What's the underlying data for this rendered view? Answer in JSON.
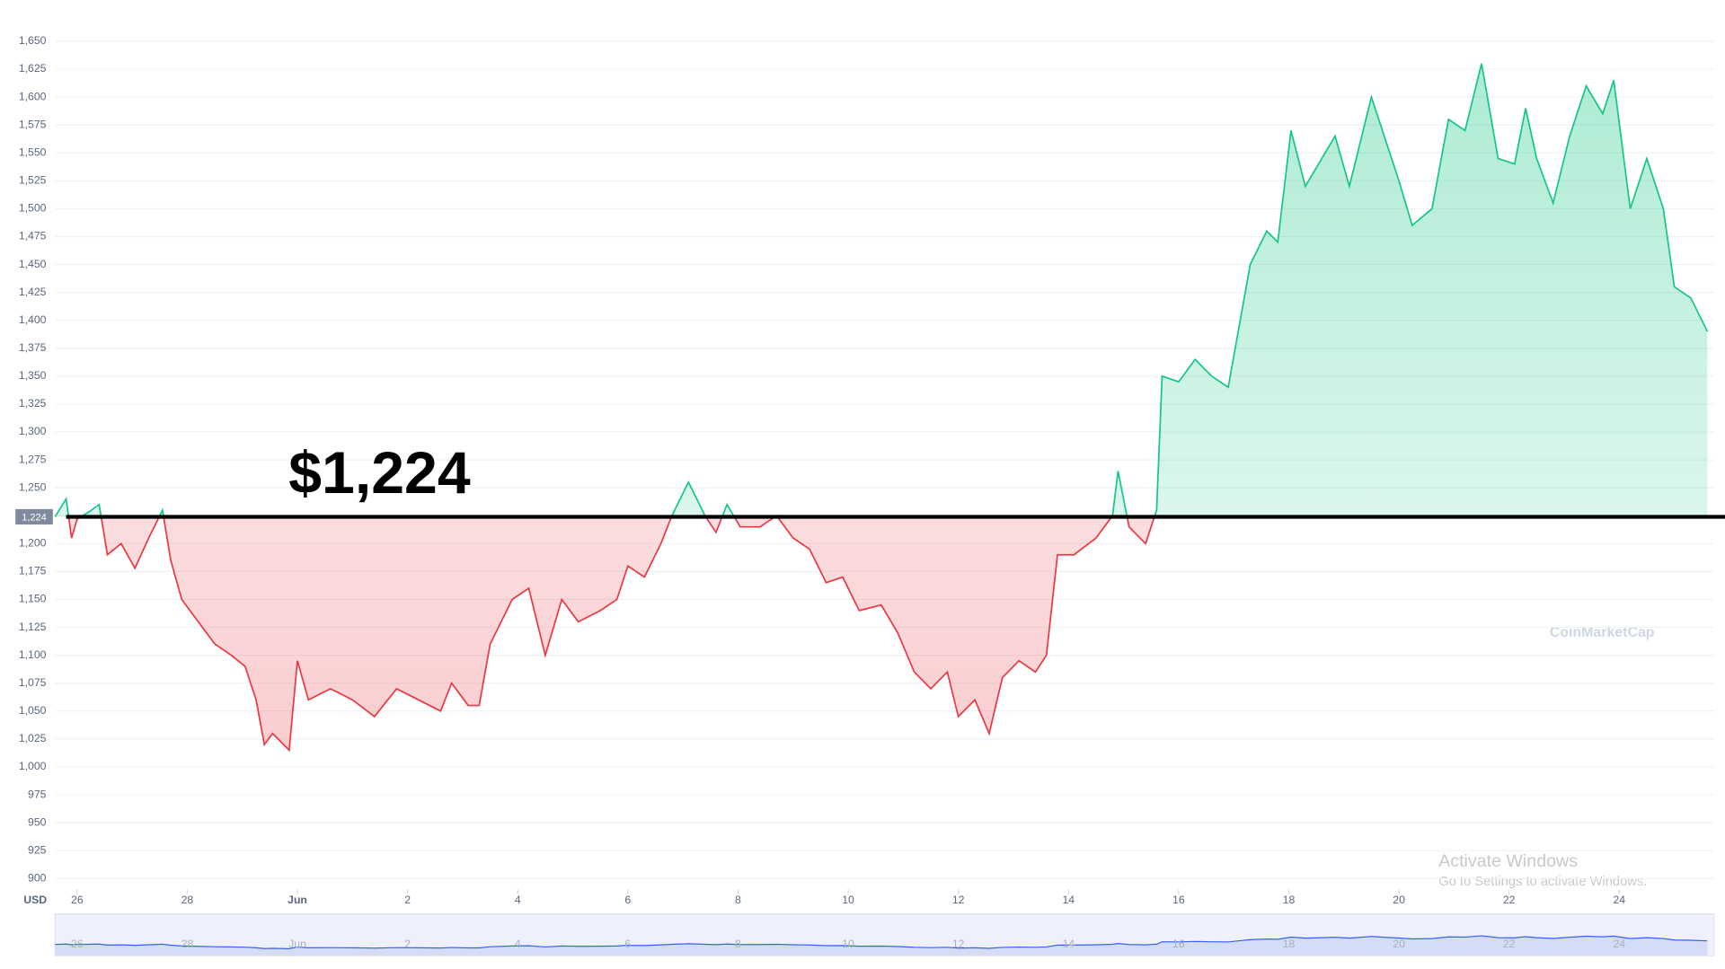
{
  "chart_data": {
    "type": "line",
    "currency": "USD",
    "annotation": "$1,224",
    "baseline": {
      "value": 1224,
      "label": "1,224"
    },
    "colors": {
      "above": "#16c784",
      "below": "#ea3943",
      "baseline": "#000000"
    },
    "watermark": "CoinMarketCap",
    "overlay": [
      "Activate Windows",
      "Go to Settings to activate Windows."
    ],
    "xlim": [
      -0.4,
      29.72
    ],
    "xticks": [
      {
        "value": 0,
        "label": "26"
      },
      {
        "value": 2,
        "label": "28"
      },
      {
        "value": 4,
        "label": "Jun"
      },
      {
        "value": 6,
        "label": "2"
      },
      {
        "value": 8,
        "label": "4"
      },
      {
        "value": 10,
        "label": "6"
      },
      {
        "value": 12,
        "label": "8"
      },
      {
        "value": 14,
        "label": "10"
      },
      {
        "value": 16,
        "label": "12"
      },
      {
        "value": 18,
        "label": "14"
      },
      {
        "value": 20,
        "label": "16"
      },
      {
        "value": 22,
        "label": "18"
      },
      {
        "value": 24,
        "label": "20"
      },
      {
        "value": 26,
        "label": "22"
      },
      {
        "value": 28,
        "label": "24"
      }
    ],
    "ylim": [
      890,
      1680
    ],
    "yticks": [
      {
        "value": 900,
        "label": "900"
      },
      {
        "value": 925,
        "label": "925"
      },
      {
        "value": 950,
        "label": "950"
      },
      {
        "value": 975,
        "label": "975"
      },
      {
        "value": 1000,
        "label": "1,000"
      },
      {
        "value": 1025,
        "label": "1,025"
      },
      {
        "value": 1050,
        "label": "1,050"
      },
      {
        "value": 1075,
        "label": "1,075"
      },
      {
        "value": 1100,
        "label": "1,100"
      },
      {
        "value": 1125,
        "label": "1,125"
      },
      {
        "value": 1150,
        "label": "1,150"
      },
      {
        "value": 1175,
        "label": "1,175"
      },
      {
        "value": 1200,
        "label": "1,200"
      },
      {
        "value": 1225,
        "label": "1,225"
      },
      {
        "value": 1250,
        "label": "1,250"
      },
      {
        "value": 1275,
        "label": "1,275"
      },
      {
        "value": 1300,
        "label": "1,300"
      },
      {
        "value": 1325,
        "label": "1,325"
      },
      {
        "value": 1350,
        "label": "1,350"
      },
      {
        "value": 1375,
        "label": "1,375"
      },
      {
        "value": 1400,
        "label": "1,400"
      },
      {
        "value": 1425,
        "label": "1,425"
      },
      {
        "value": 1450,
        "label": "1,450"
      },
      {
        "value": 1475,
        "label": "1,475"
      },
      {
        "value": 1500,
        "label": "1,500"
      },
      {
        "value": 1525,
        "label": "1,525"
      },
      {
        "value": 1550,
        "label": "1,550"
      },
      {
        "value": 1575,
        "label": "1,575"
      },
      {
        "value": 1600,
        "label": "1,600"
      },
      {
        "value": 1625,
        "label": "1,625"
      },
      {
        "value": 1650,
        "label": "1,650"
      }
    ],
    "grid": true,
    "x": [
      -0.4,
      -0.2,
      -0.1,
      0,
      0.2,
      0.4,
      0.55,
      0.8,
      1.05,
      1.3,
      1.55,
      1.7,
      1.9,
      2.2,
      2.5,
      2.8,
      3.05,
      3.25,
      3.4,
      3.55,
      3.85,
      4,
      4.2,
      4.6,
      5,
      5.4,
      5.8,
      6.2,
      6.6,
      6.8,
      7.1,
      7.3,
      7.5,
      7.9,
      8.2,
      8.5,
      8.8,
      9.1,
      9.5,
      9.8,
      10,
      10.3,
      10.6,
      10.8,
      11.1,
      11.4,
      11.6,
      11.8,
      12.04,
      12.4,
      12.7,
      13,
      13.3,
      13.6,
      13.9,
      14.2,
      14.6,
      14.9,
      15.2,
      15.5,
      15.8,
      16,
      16.3,
      16.56,
      16.8,
      17.1,
      17.4,
      17.6,
      17.8,
      18.1,
      18.5,
      18.8,
      18.9,
      19.1,
      19.4,
      19.6,
      19.7,
      20,
      20.3,
      20.6,
      20.9,
      21.1,
      21.3,
      21.6,
      21.8,
      22.04,
      22.3,
      22.6,
      22.84,
      23.1,
      23.5,
      23.8,
      24,
      24.24,
      24.6,
      24.9,
      25.2,
      25.5,
      25.8,
      26.1,
      26.3,
      26.5,
      26.8,
      27.1,
      27.4,
      27.7,
      27.9,
      28.2,
      28.5,
      28.8,
      29,
      29.3,
      29.6
    ],
    "values": [
      1224,
      1240,
      1205,
      1222,
      1228,
      1235,
      1190,
      1200,
      1178,
      1205,
      1230,
      1185,
      1150,
      1130,
      1110,
      1100,
      1090,
      1060,
      1020,
      1030,
      1015,
      1095,
      1060,
      1070,
      1060,
      1045,
      1070,
      1060,
      1050,
      1075,
      1055,
      1055,
      1110,
      1150,
      1160,
      1100,
      1150,
      1130,
      1140,
      1150,
      1180,
      1170,
      1200,
      1225,
      1255,
      1225,
      1210,
      1235,
      1215,
      1215,
      1225,
      1205,
      1195,
      1165,
      1170,
      1140,
      1145,
      1120,
      1085,
      1070,
      1085,
      1045,
      1060,
      1030,
      1080,
      1095,
      1085,
      1100,
      1190,
      1190,
      1205,
      1225,
      1265,
      1215,
      1200,
      1230,
      1350,
      1345,
      1365,
      1350,
      1340,
      1395,
      1450,
      1480,
      1470,
      1570,
      1520,
      1545,
      1565,
      1520,
      1600,
      1555,
      1525,
      1485,
      1500,
      1580,
      1570,
      1630,
      1545,
      1540,
      1590,
      1545,
      1505,
      1565,
      1610,
      1585,
      1615,
      1500,
      1545,
      1500,
      1430,
      1420,
      1390
    ]
  }
}
